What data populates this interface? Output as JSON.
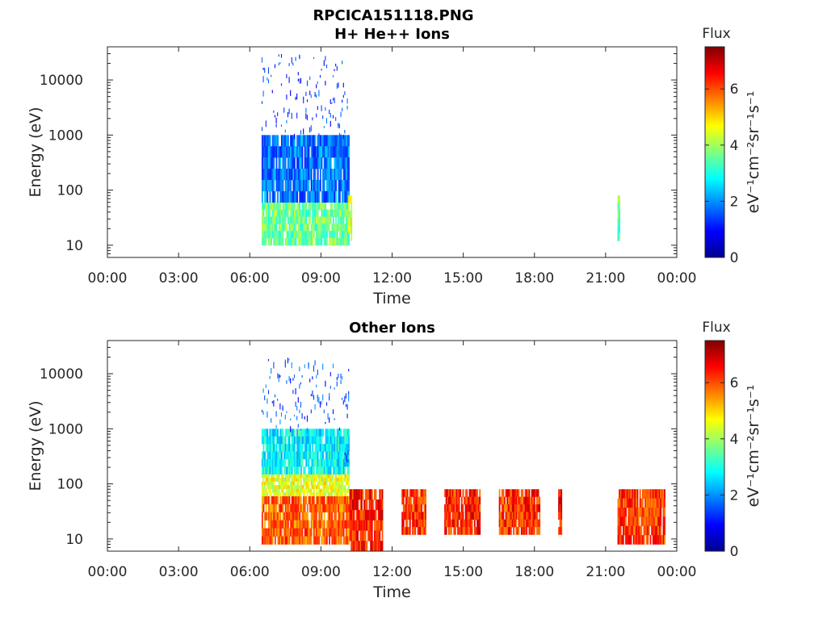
{
  "figure_title": "RPCICA151118.PNG",
  "colormap": [
    "#00008f",
    "#0000ff",
    "#0080ff",
    "#00ffff",
    "#80ff80",
    "#ffff00",
    "#ff8000",
    "#ff0000",
    "#800000"
  ],
  "chart_data": [
    {
      "type": "heatmap",
      "title": "H+ He++ Ions",
      "xlabel": "Time",
      "ylabel": "Energy (eV)",
      "yscale": "log",
      "ylim": [
        6,
        40000
      ],
      "xlim_hours": [
        0,
        24
      ],
      "xticks": [
        "00:00",
        "03:00",
        "06:00",
        "09:00",
        "12:00",
        "15:00",
        "18:00",
        "21:00",
        "00:00"
      ],
      "yticks": [
        {
          "value": 10,
          "label": "10"
        },
        {
          "value": 100,
          "label": "100"
        },
        {
          "value": 1000,
          "label": "1000"
        },
        {
          "value": 10000,
          "label": "10000"
        }
      ],
      "colorbar": {
        "title": "Flux",
        "range": [
          0,
          7.5
        ],
        "ticks": [
          "0",
          "2",
          "4",
          "6"
        ],
        "units": "eV⁻¹cm⁻²sr⁻¹s⁻¹"
      },
      "blocks": [
        {
          "t0": 6.5,
          "t1": 10.15,
          "e0": 10,
          "e1": 60,
          "flux": 3.6
        },
        {
          "t0": 6.5,
          "t1": 10.15,
          "e0": 60,
          "e1": 1000,
          "flux": 1.8
        },
        {
          "t0": 6.5,
          "t1": 10.15,
          "e0": 1000,
          "e1": 30000,
          "flux": 1.3,
          "sparse": true
        },
        {
          "t0": 10.15,
          "t1": 10.3,
          "e0": 12,
          "e1": 80,
          "flux": 4.5
        },
        {
          "t0": 21.5,
          "t1": 21.6,
          "e0": 12,
          "e1": 80,
          "flux": 3.5
        }
      ]
    },
    {
      "type": "heatmap",
      "title": "Other Ions",
      "xlabel": "Time",
      "ylabel": "Energy (eV)",
      "yscale": "log",
      "ylim": [
        6,
        40000
      ],
      "xlim_hours": [
        0,
        24
      ],
      "xticks": [
        "00:00",
        "03:00",
        "06:00",
        "09:00",
        "12:00",
        "15:00",
        "18:00",
        "21:00",
        "00:00"
      ],
      "yticks": [
        {
          "value": 10,
          "label": "10"
        },
        {
          "value": 100,
          "label": "100"
        },
        {
          "value": 1000,
          "label": "1000"
        },
        {
          "value": 10000,
          "label": "10000"
        }
      ],
      "colorbar": {
        "title": "Flux",
        "range": [
          0,
          7.5
        ],
        "ticks": [
          "0",
          "2",
          "4",
          "6"
        ],
        "units": "eV⁻¹cm⁻²sr⁻¹s⁻¹"
      },
      "blocks": [
        {
          "t0": 6.5,
          "t1": 10.15,
          "e0": 8,
          "e1": 60,
          "flux": 5.8
        },
        {
          "t0": 6.5,
          "t1": 10.15,
          "e0": 60,
          "e1": 150,
          "flux": 4.5
        },
        {
          "t0": 6.5,
          "t1": 10.15,
          "e0": 150,
          "e1": 1000,
          "flux": 2.8
        },
        {
          "t0": 6.5,
          "t1": 10.15,
          "e0": 1000,
          "e1": 20000,
          "flux": 1.5,
          "sparse": true
        },
        {
          "t0": 10.0,
          "t1": 10.15,
          "e0": 250,
          "e1": 450,
          "flux": 2.0
        },
        {
          "t0": 10.2,
          "t1": 11.6,
          "e0": 6,
          "e1": 80,
          "flux": 6.4
        },
        {
          "t0": 12.4,
          "t1": 13.4,
          "e0": 12,
          "e1": 80,
          "flux": 6.2
        },
        {
          "t0": 14.2,
          "t1": 15.7,
          "e0": 12,
          "e1": 80,
          "flux": 6.3
        },
        {
          "t0": 16.5,
          "t1": 18.2,
          "e0": 12,
          "e1": 80,
          "flux": 6.2
        },
        {
          "t0": 19.0,
          "t1": 19.15,
          "e0": 12,
          "e1": 80,
          "flux": 6.5
        },
        {
          "t0": 21.5,
          "t1": 23.5,
          "e0": 8,
          "e1": 80,
          "flux": 6.2
        }
      ]
    }
  ]
}
